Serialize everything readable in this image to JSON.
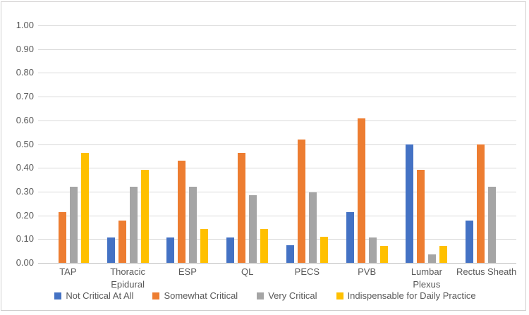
{
  "chart_data": {
    "type": "bar",
    "title": "",
    "xlabel": "",
    "ylabel": "",
    "ylim": [
      0,
      1
    ],
    "grid": true,
    "legend_position": "bottom",
    "y_ticks": [
      "1.00",
      "0.90",
      "0.80",
      "0.70",
      "0.60",
      "0.50",
      "0.40",
      "0.30",
      "0.20",
      "0.10",
      "0.00"
    ],
    "categories": [
      "TAP",
      "Thoracic\nEpidural",
      "ESP",
      "QL",
      "PECS",
      "PVB",
      "Lumbar\nPlexus",
      "Rectus Sheath"
    ],
    "series": [
      {
        "name": "Not Critical At All",
        "color": "#4472C4",
        "values": [
          0,
          0.107,
          0.107,
          0.107,
          0.074,
          0.214,
          0.5,
          0.179
        ]
      },
      {
        "name": "Somewhat Critical",
        "color": "#ED7D31",
        "values": [
          0.214,
          0.179,
          0.429,
          0.464,
          0.519,
          0.607,
          0.393,
          0.5
        ]
      },
      {
        "name": "Very Critical",
        "color": "#A5A5A5",
        "values": [
          0.321,
          0.321,
          0.321,
          0.286,
          0.296,
          0.107,
          0.036,
          0.321
        ]
      },
      {
        "name": "Indispensable for Daily Practice",
        "color": "#FFC000",
        "values": [
          0.464,
          0.393,
          0.143,
          0.143,
          0.111,
          0.071,
          0.071,
          0
        ]
      }
    ]
  },
  "style_colors": {
    "gridline": "#d9d9d9",
    "axis_line": "#bfbfbf",
    "axis_text": "#595959",
    "chart_border": "#cfcdcd",
    "background": "#ffffff"
  }
}
